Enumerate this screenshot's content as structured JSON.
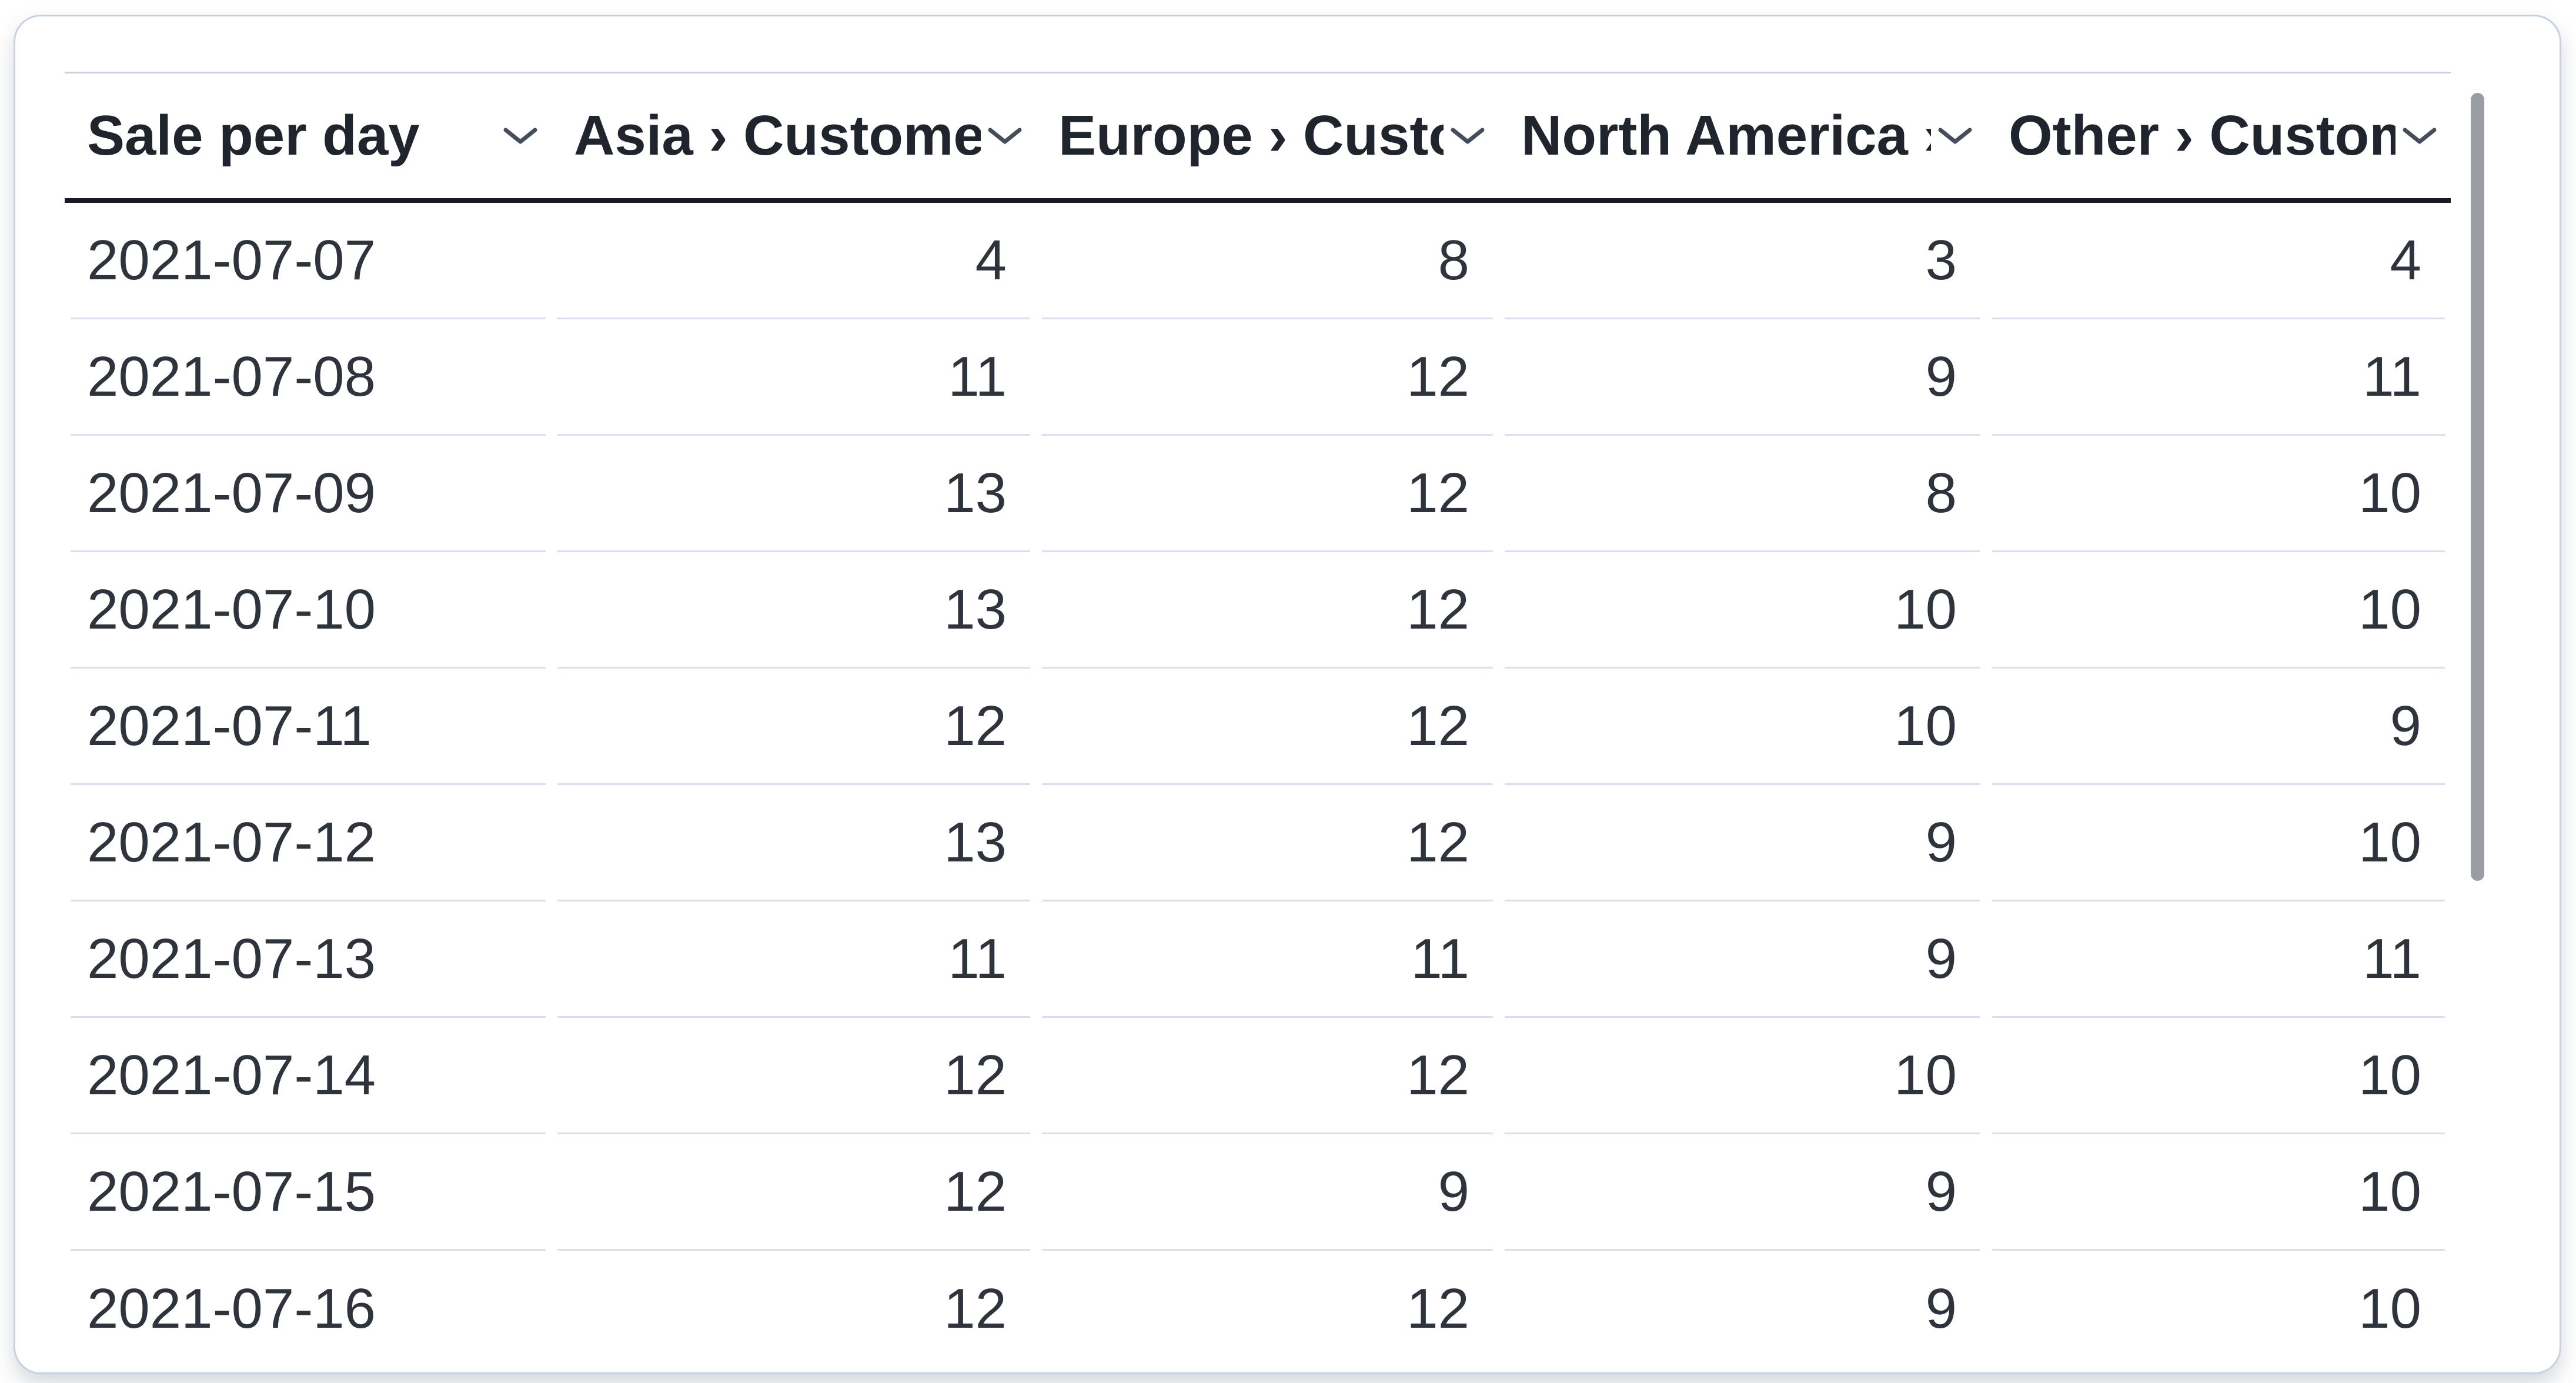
{
  "table": {
    "columns": [
      {
        "id": "sale-per-day",
        "label": "Sale per day"
      },
      {
        "id": "asia",
        "label": "Asia › Customers"
      },
      {
        "id": "europe",
        "label": "Europe › Customers"
      },
      {
        "id": "north-america",
        "label": "North America › Customers"
      },
      {
        "id": "other",
        "label": "Other › Customers"
      }
    ],
    "rows": [
      {
        "date": "2021-07-07",
        "values": [
          "4",
          "8",
          "3",
          "4"
        ]
      },
      {
        "date": "2021-07-08",
        "values": [
          "11",
          "12",
          "9",
          "11"
        ]
      },
      {
        "date": "2021-07-09",
        "values": [
          "13",
          "12",
          "8",
          "10"
        ]
      },
      {
        "date": "2021-07-10",
        "values": [
          "13",
          "12",
          "10",
          "10"
        ]
      },
      {
        "date": "2021-07-11",
        "values": [
          "12",
          "12",
          "10",
          "9"
        ]
      },
      {
        "date": "2021-07-12",
        "values": [
          "13",
          "12",
          "9",
          "10"
        ]
      },
      {
        "date": "2021-07-13",
        "values": [
          "11",
          "11",
          "9",
          "11"
        ]
      },
      {
        "date": "2021-07-14",
        "values": [
          "12",
          "12",
          "10",
          "10"
        ]
      },
      {
        "date": "2021-07-15",
        "values": [
          "12",
          "9",
          "9",
          "10"
        ]
      },
      {
        "date": "2021-07-16",
        "values": [
          "12",
          "12",
          "9",
          "10"
        ]
      }
    ]
  },
  "icons": {
    "header_sort": "chevron-down-icon"
  },
  "colors": {
    "card_border": "#c7d1e0",
    "header_underline": "#171a20",
    "row_divider": "#dae0eb",
    "header_text": "#20242c",
    "body_text": "#2f333c",
    "scrollbar_thumb": "#9a9da3"
  }
}
